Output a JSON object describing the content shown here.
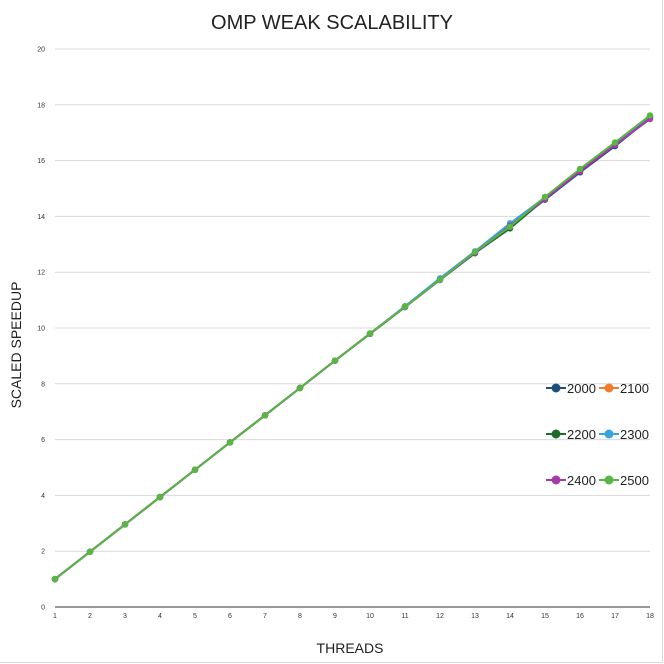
{
  "chart_data": {
    "type": "line",
    "title": "OMP WEAK SCALABILITY",
    "xlabel": "THREADS",
    "ylabel": "SCALED SPEEDUP",
    "x": [
      1,
      2,
      3,
      4,
      5,
      6,
      7,
      8,
      9,
      10,
      11,
      12,
      13,
      14,
      15,
      16,
      17,
      18
    ],
    "xlim": [
      1,
      18
    ],
    "ylim": [
      0,
      20
    ],
    "yticks": [
      0,
      2,
      4,
      6,
      8,
      10,
      12,
      14,
      16,
      18,
      20
    ],
    "grid": "horizontal",
    "legend": "right",
    "series": [
      {
        "name": "2000",
        "color": "#1f4e79",
        "values": [
          1,
          1.98,
          2.96,
          3.94,
          4.92,
          5.9,
          6.87,
          7.85,
          8.83,
          9.79,
          10.75,
          11.72,
          12.68,
          13.65,
          14.6,
          15.58,
          16.52,
          17.52
        ]
      },
      {
        "name": "2100",
        "color": "#ed7d31",
        "values": [
          1,
          1.98,
          2.96,
          3.94,
          4.92,
          5.9,
          6.87,
          7.85,
          8.83,
          9.8,
          10.77,
          11.74,
          12.7,
          13.66,
          14.65,
          15.65,
          16.6,
          17.58
        ]
      },
      {
        "name": "2200",
        "color": "#1e6b2a",
        "values": [
          1,
          1.98,
          2.96,
          3.94,
          4.92,
          5.9,
          6.87,
          7.85,
          8.83,
          9.79,
          10.76,
          11.73,
          12.69,
          13.57,
          14.63,
          15.63,
          16.58,
          17.57
        ]
      },
      {
        "name": "2300",
        "color": "#3aa3dc",
        "values": [
          1,
          1.98,
          2.96,
          3.94,
          4.92,
          5.9,
          6.87,
          7.85,
          8.83,
          9.8,
          10.78,
          11.78,
          12.75,
          13.75,
          14.68,
          15.68,
          16.62,
          17.6
        ]
      },
      {
        "name": "2400",
        "color": "#a53ba8",
        "values": [
          1,
          1.98,
          2.96,
          3.94,
          4.92,
          5.9,
          6.87,
          7.85,
          8.83,
          9.8,
          10.76,
          11.73,
          12.7,
          13.66,
          14.63,
          15.62,
          16.56,
          17.49
        ]
      },
      {
        "name": "2500",
        "color": "#5bb445",
        "values": [
          1,
          1.98,
          2.96,
          3.94,
          4.92,
          5.9,
          6.87,
          7.85,
          8.83,
          9.8,
          10.76,
          11.73,
          12.73,
          13.63,
          14.7,
          15.7,
          16.65,
          17.62
        ]
      }
    ]
  }
}
